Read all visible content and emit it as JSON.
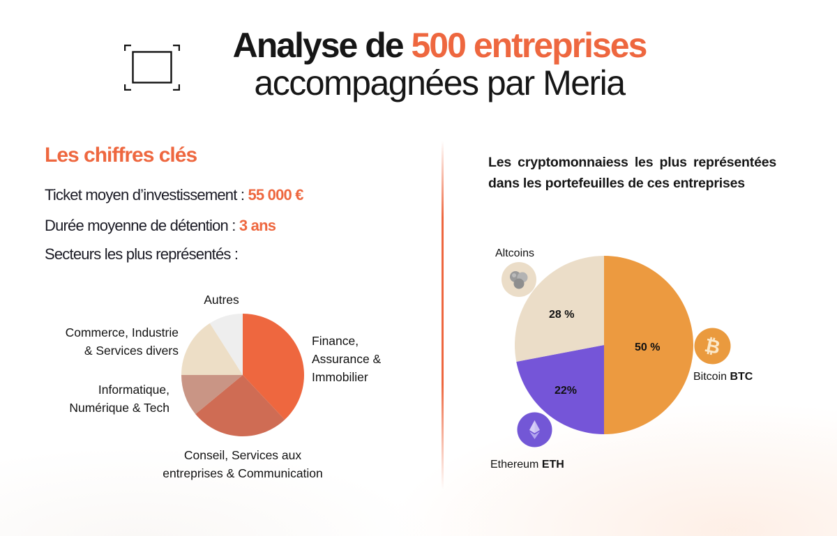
{
  "header": {
    "title_part1": "Analyse de ",
    "title_accent": "500 entreprises",
    "title_line2": "accompagnées par Meria",
    "icon": "frame-corners-icon"
  },
  "key_figures": {
    "title": "Les chiffres clés",
    "ticket_label": "Ticket moyen d’investissement : ",
    "ticket_value": "55 000 €",
    "duration_label": "Durée moyenne de détention : ",
    "duration_value": "3 ans",
    "sectors_label": "Secteurs les plus représentés :"
  },
  "crypto": {
    "title": "Les cryptomonnaiess les plus représentées dans les portefeuilles de ces entreprises",
    "labels": {
      "altcoins": "Altcoins",
      "bitcoin_name": "Bitcoin ",
      "bitcoin_ticker": "BTC",
      "ethereum_name": "Ethereum ",
      "ethereum_ticker": "ETH"
    },
    "percent_labels": {
      "btc": "50 %",
      "altcoins": "28 %",
      "eth": "22%"
    },
    "icons": [
      "altcoins-icon",
      "bitcoin-icon",
      "ethereum-icon"
    ]
  },
  "colors": {
    "accent": "#EE673F",
    "finance": "#EE673F",
    "conseil": "#CF6C54",
    "informatique": "#C99585",
    "commerce": "#EDDEC6",
    "autres": "#EEEEEE",
    "btc": "#EC9A40",
    "eth": "#7555D8",
    "altcoins": "#EBDDC8"
  },
  "chart_data": [
    {
      "type": "pie",
      "title": "Secteurs les plus représentés",
      "categories": [
        "Finance, Assurance & Immobilier",
        "Conseil, Services aux entreprises & Communication",
        "Informatique, Numérique & Tech",
        "Commerce, Industrie & Services divers",
        "Autres"
      ],
      "values": [
        38,
        26,
        11,
        16,
        9
      ],
      "unit": "% (estimated from slice angles, no labels shown)",
      "colors": [
        "#EE673F",
        "#CF6C54",
        "#C99585",
        "#EDDEC6",
        "#EEEEEE"
      ],
      "start_angle": "12 o'clock, clockwise",
      "legend": "labels placed outside slices"
    },
    {
      "type": "pie",
      "title": "Les cryptomonnaiess les plus représentées dans les portefeuilles de ces entreprises",
      "categories": [
        "Bitcoin BTC",
        "Ethereum ETH",
        "Altcoins"
      ],
      "values": [
        50,
        22,
        28
      ],
      "data_labels": [
        "50 %",
        "22%",
        "28 %"
      ],
      "colors": [
        "#EC9A40",
        "#7555D8",
        "#EBDDC8"
      ],
      "start_angle": "12 o'clock, clockwise",
      "legend": "labels with coin icons outside slices"
    }
  ]
}
